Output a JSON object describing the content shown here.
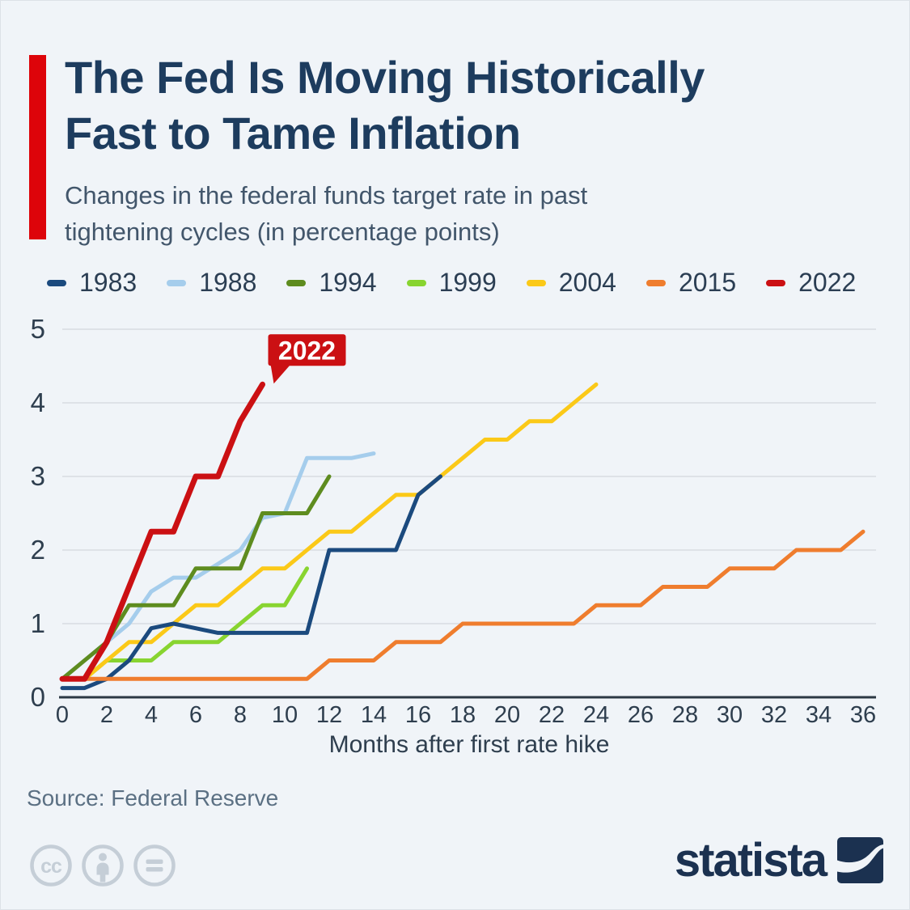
{
  "header": {
    "title_line1": "The Fed Is Moving Historically",
    "title_line2": "Fast to Tame Inflation",
    "subtitle_line1": "Changes in the federal funds target rate in past",
    "subtitle_line2": "tightening cycles (in percentage points)",
    "accent_color": "#dd040a"
  },
  "legend": [
    {
      "label": "1983",
      "color": "#1b4a7e"
    },
    {
      "label": "1988",
      "color": "#a5cdec"
    },
    {
      "label": "1994",
      "color": "#5e8c1f"
    },
    {
      "label": "1999",
      "color": "#88d430"
    },
    {
      "label": "2004",
      "color": "#fbc918"
    },
    {
      "label": "2015",
      "color": "#ef7d2e"
    },
    {
      "label": "2022",
      "color": "#cb1013"
    }
  ],
  "chart_data": {
    "type": "line",
    "title": "The Fed Is Moving Historically Fast to Tame Inflation",
    "subtitle": "Changes in the federal funds target rate in past tightening cycles (in percentage points)",
    "xlabel": "Months after first rate hike",
    "ylabel": "",
    "xlim": [
      0,
      36
    ],
    "ylim": [
      0,
      5
    ],
    "x_ticks": [
      0,
      2,
      4,
      6,
      8,
      10,
      12,
      14,
      16,
      18,
      20,
      22,
      24,
      26,
      28,
      30,
      32,
      34,
      36
    ],
    "y_ticks": [
      0,
      1,
      2,
      3,
      4,
      5
    ],
    "grid": "horizontal",
    "legend_position": "top",
    "annotation": {
      "text": "2022",
      "series": "2022",
      "month": 9,
      "value": 4.25,
      "box_color": "#cb1013",
      "text_color": "#ffffff"
    },
    "series": [
      {
        "name": "1983",
        "color": "#1b4a7e",
        "line_width": 5,
        "start_month": 0,
        "values": [
          0.125,
          0.125,
          0.25,
          0.5,
          0.9375,
          1.0,
          0.9375,
          0.875,
          0.875,
          0.875,
          0.875,
          0.875,
          2.0,
          2.0,
          2.0,
          2.0,
          2.75,
          3.0
        ]
      },
      {
        "name": "1988",
        "color": "#a5cdec",
        "line_width": 5,
        "start_month": 0,
        "values": [
          0.25,
          0.5,
          0.75,
          1.0,
          1.4375,
          1.625,
          1.625,
          1.8125,
          2.0,
          2.4375,
          2.5,
          3.25,
          3.25,
          3.25,
          3.3125
        ]
      },
      {
        "name": "1994",
        "color": "#5e8c1f",
        "line_width": 5,
        "start_month": 0,
        "values": [
          0.25,
          0.5,
          0.75,
          1.25,
          1.25,
          1.25,
          1.75,
          1.75,
          1.75,
          2.5,
          2.5,
          2.5,
          3.0
        ]
      },
      {
        "name": "1999",
        "color": "#88d430",
        "line_width": 5,
        "start_month": 0,
        "values": [
          0.25,
          0.25,
          0.5,
          0.5,
          0.5,
          0.75,
          0.75,
          0.75,
          1.0,
          1.25,
          1.25,
          1.75
        ]
      },
      {
        "name": "2004",
        "color": "#fbc918",
        "line_width": 5,
        "start_month": 0,
        "values": [
          0.25,
          0.25,
          0.5,
          0.75,
          0.75,
          1.0,
          1.25,
          1.25,
          1.5,
          1.75,
          1.75,
          2.0,
          2.25,
          2.25,
          2.5,
          2.75,
          2.75,
          3.0,
          3.25,
          3.5,
          3.5,
          3.75,
          3.75,
          4.0,
          4.25
        ]
      },
      {
        "name": "2015",
        "color": "#ef7d2e",
        "line_width": 5,
        "start_month": 0,
        "values": [
          0.25,
          0.25,
          0.25,
          0.25,
          0.25,
          0.25,
          0.25,
          0.25,
          0.25,
          0.25,
          0.25,
          0.25,
          0.5,
          0.5,
          0.5,
          0.75,
          0.75,
          0.75,
          1.0,
          1.0,
          1.0,
          1.0,
          1.0,
          1.0,
          1.25,
          1.25,
          1.25,
          1.5,
          1.5,
          1.5,
          1.75,
          1.75,
          1.75,
          2.0,
          2.0,
          2.0,
          2.25
        ]
      },
      {
        "name": "2022",
        "color": "#cb1013",
        "line_width": 7,
        "start_month": 0,
        "values": [
          0.25,
          0.25,
          0.75,
          1.5,
          2.25,
          2.25,
          3.0,
          3.0,
          3.75,
          4.25
        ]
      }
    ],
    "colors": {
      "grid": "#d8dce1",
      "axis": "#2b3844",
      "tick_label": "#2e3e4e"
    }
  },
  "footer": {
    "source": "Source: Federal Reserve",
    "license_icons": [
      "cc-icon",
      "cc-by-person-icon",
      "cc-nd-equals-icon"
    ],
    "brand": "statista"
  }
}
